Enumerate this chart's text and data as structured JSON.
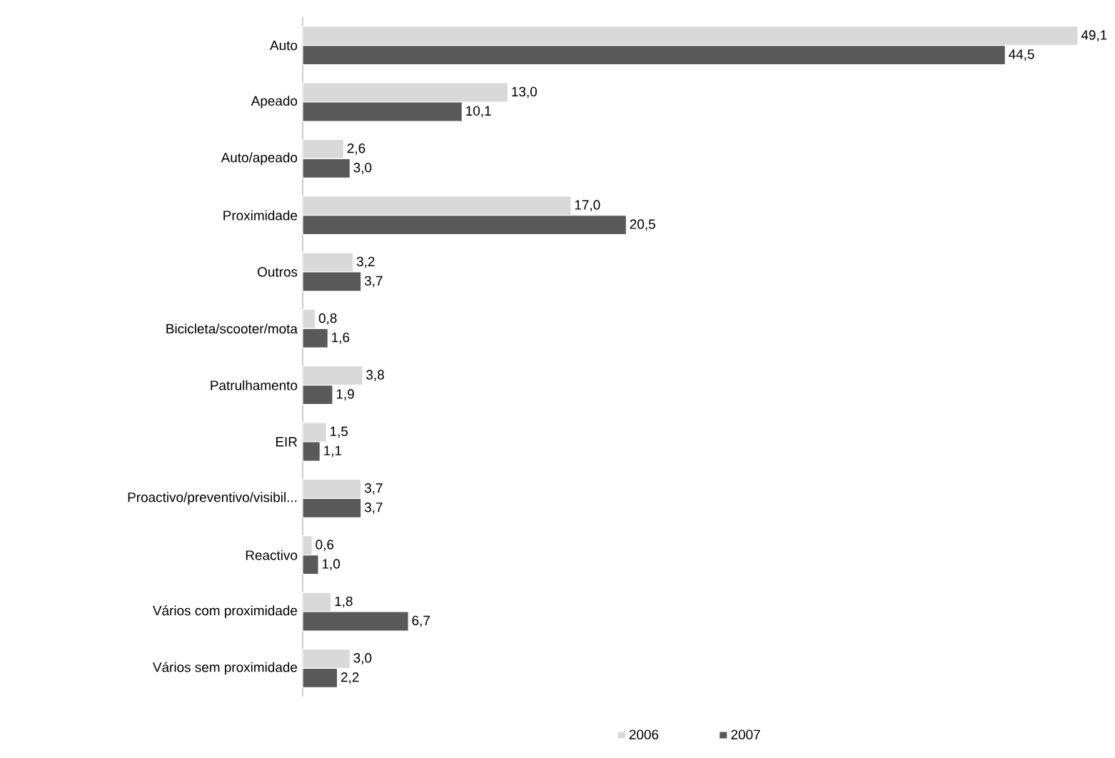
{
  "chart_data": {
    "type": "bar",
    "orientation": "horizontal",
    "legend": "bottom",
    "categories": [
      "Auto",
      "Apeado",
      "Auto/apeado",
      "Proximidade",
      "Outros",
      "Bicicleta/scooter/mota",
      "Patrulhamento",
      "EIR",
      "Proactivo/preventivo/visibil...",
      "Reactivo",
      "Vários com proximidade",
      "Vários sem proximidade"
    ],
    "series": [
      {
        "name": "2006",
        "color": "#d9d9d9",
        "values": [
          49.1,
          13.0,
          2.6,
          17.0,
          3.2,
          0.8,
          3.8,
          1.5,
          3.7,
          0.6,
          1.8,
          3.0
        ],
        "value_labels": [
          "49,1",
          "13,0",
          "2,6",
          "17,0",
          "3,2",
          "0,8",
          "3,8",
          "1,5",
          "3,7",
          "0,6",
          "1,8",
          "3,0"
        ]
      },
      {
        "name": "2007",
        "color": "#595959",
        "values": [
          44.5,
          10.1,
          3.0,
          20.5,
          3.7,
          1.6,
          1.9,
          1.1,
          3.7,
          1.0,
          6.7,
          2.2
        ],
        "value_labels": [
          "44,5",
          "10,1",
          "3,0",
          "20,5",
          "3,7",
          "1,6",
          "1,9",
          "1,1",
          "3,7",
          "1,0",
          "6,7",
          "2,2"
        ]
      }
    ]
  }
}
